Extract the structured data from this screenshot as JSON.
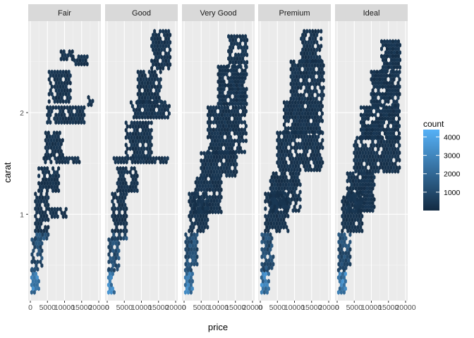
{
  "chart_data": {
    "type": "hexbin",
    "xlabel": "price",
    "ylabel": "carat",
    "xlim": [
      0,
      20000
    ],
    "ylim": [
      0.15,
      2.9
    ],
    "x_ticks": [
      0,
      5000,
      10000,
      15000,
      20000
    ],
    "x_tick_labels": [
      "0",
      "5000",
      "10000",
      "15000",
      "20000"
    ],
    "y_ticks": [
      1,
      2
    ],
    "y_tick_labels": [
      "1",
      "2"
    ],
    "facets": [
      "Fair",
      "Good",
      "Very Good",
      "Premium",
      "Ideal"
    ],
    "legend": {
      "title": "count",
      "ticks": [
        1000,
        2000,
        3000,
        4000
      ],
      "tick_labels": [
        "1000",
        "2000",
        "3000",
        "4000"
      ],
      "range": [
        1,
        4400
      ],
      "low_color": "#132B43",
      "high_color": "#56B1F7",
      "placement": "right"
    },
    "grid": true,
    "panel_background": "#EBEBEB",
    "strip_background": "#D9D9D9",
    "grid_color": "#FFFFFF",
    "series": [
      {
        "name": "Fair",
        "regions": [
          {
            "x": [
              400,
              2500
            ],
            "y": [
              0.2,
              0.45
            ]
          },
          {
            "x": [
              500,
              3500
            ],
            "y": [
              0.45,
              0.75
            ]
          },
          {
            "x": [
              1500,
              5500
            ],
            "y": [
              0.75,
              1.2
            ]
          },
          {
            "x": [
              5500,
              10500
            ],
            "y": [
              0.95,
              1.05
            ]
          },
          {
            "x": [
              2500,
              8500
            ],
            "y": [
              1.2,
              1.45
            ]
          },
          {
            "x": [
              4000,
              15500
            ],
            "y": [
              1.48,
              1.55
            ]
          },
          {
            "x": [
              4500,
              9500
            ],
            "y": [
              1.55,
              1.8
            ]
          },
          {
            "x": [
              5000,
              16000
            ],
            "y": [
              1.9,
              2.05
            ]
          },
          {
            "x": [
              5500,
              12000
            ],
            "y": [
              2.1,
              2.4
            ]
          },
          {
            "x": [
              12500,
              17000
            ],
            "y": [
              2.45,
              2.55
            ]
          },
          {
            "x": [
              9000,
              12500
            ],
            "y": [
              2.5,
              2.6
            ]
          },
          {
            "x": [
              17000,
              18500
            ],
            "y": [
              2.05,
              2.15
            ]
          }
        ]
      },
      {
        "name": "Good",
        "regions": [
          {
            "x": [
              400,
              2500
            ],
            "y": [
              0.2,
              0.45
            ]
          },
          {
            "x": [
              500,
              3500
            ],
            "y": [
              0.45,
              0.75
            ]
          },
          {
            "x": [
              1500,
              6000
            ],
            "y": [
              0.75,
              1.2
            ]
          },
          {
            "x": [
              3000,
              9000
            ],
            "y": [
              1.2,
              1.45
            ]
          },
          {
            "x": [
              2000,
              18000
            ],
            "y": [
              1.48,
              1.55
            ]
          },
          {
            "x": [
              5500,
              13000
            ],
            "y": [
              1.55,
              1.9
            ]
          },
          {
            "x": [
              7000,
              18500
            ],
            "y": [
              1.95,
              2.1
            ]
          },
          {
            "x": [
              9000,
              16000
            ],
            "y": [
              2.1,
              2.4
            ]
          },
          {
            "x": [
              13000,
              18500
            ],
            "y": [
              2.4,
              2.8
            ]
          }
        ]
      },
      {
        "name": "Very Good",
        "regions": [
          {
            "x": [
              400,
              2500
            ],
            "y": [
              0.2,
              0.45
            ]
          },
          {
            "x": [
              500,
              4000
            ],
            "y": [
              0.45,
              0.8
            ]
          },
          {
            "x": [
              1500,
              7000
            ],
            "y": [
              0.8,
              1.2
            ]
          },
          {
            "x": [
              3000,
              11000
            ],
            "y": [
              1.0,
              1.35
            ]
          },
          {
            "x": [
              5000,
              15500
            ],
            "y": [
              1.35,
              1.6
            ]
          },
          {
            "x": [
              7000,
              18500
            ],
            "y": [
              1.6,
              2.05
            ]
          },
          {
            "x": [
              10000,
              18500
            ],
            "y": [
              2.05,
              2.45
            ]
          },
          {
            "x": [
              13000,
              18500
            ],
            "y": [
              2.45,
              2.75
            ]
          }
        ]
      },
      {
        "name": "Premium",
        "regions": [
          {
            "x": [
              400,
              2500
            ],
            "y": [
              0.2,
              0.45
            ]
          },
          {
            "x": [
              500,
              4000
            ],
            "y": [
              0.45,
              0.8
            ]
          },
          {
            "x": [
              1500,
              8500
            ],
            "y": [
              0.8,
              1.2
            ]
          },
          {
            "x": [
              3000,
              12000
            ],
            "y": [
              1.0,
              1.4
            ]
          },
          {
            "x": [
              5000,
              18500
            ],
            "y": [
              1.4,
              1.8
            ]
          },
          {
            "x": [
              7000,
              18500
            ],
            "y": [
              1.8,
              2.1
            ]
          },
          {
            "x": [
              9000,
              18500
            ],
            "y": [
              2.1,
              2.5
            ]
          },
          {
            "x": [
              12000,
              18000
            ],
            "y": [
              2.5,
              2.8
            ]
          }
        ]
      },
      {
        "name": "Ideal",
        "regions": [
          {
            "x": [
              400,
              2500
            ],
            "y": [
              0.2,
              0.45
            ]
          },
          {
            "x": [
              500,
              4000
            ],
            "y": [
              0.45,
              0.8
            ]
          },
          {
            "x": [
              1500,
              7500
            ],
            "y": [
              0.8,
              1.2
            ]
          },
          {
            "x": [
              3000,
              11000
            ],
            "y": [
              1.0,
              1.4
            ]
          },
          {
            "x": [
              5000,
              18500
            ],
            "y": [
              1.4,
              1.75
            ]
          },
          {
            "x": [
              7000,
              18500
            ],
            "y": [
              1.75,
              2.05
            ]
          },
          {
            "x": [
              10000,
              18500
            ],
            "y": [
              2.05,
              2.4
            ]
          },
          {
            "x": [
              13000,
              18500
            ],
            "y": [
              2.4,
              2.7
            ]
          }
        ]
      }
    ]
  }
}
